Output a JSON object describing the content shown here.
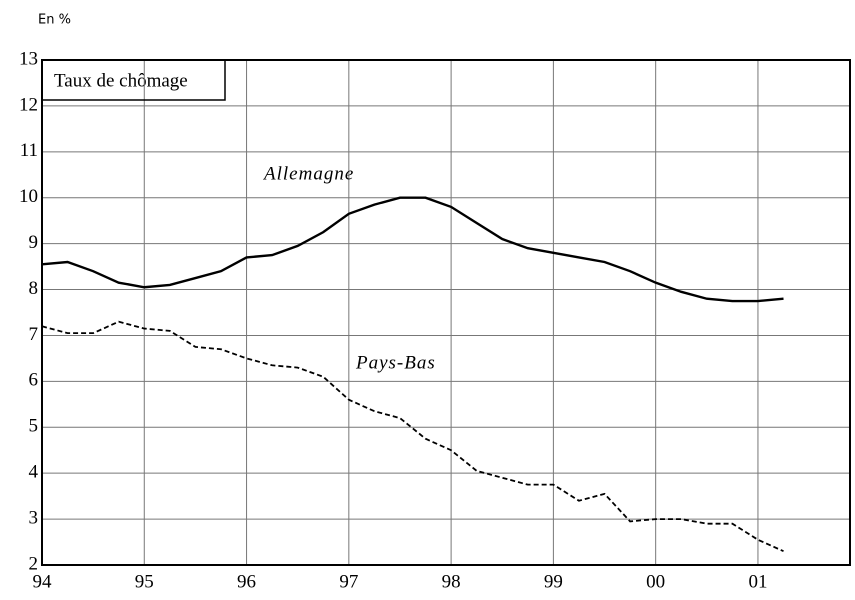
{
  "chart_data": {
    "type": "line",
    "unit_label": "En %",
    "ylabel": "Taux de chômage",
    "x": [
      94,
      94.25,
      94.5,
      94.75,
      95,
      95.25,
      95.5,
      95.75,
      96,
      96.25,
      96.5,
      96.75,
      97,
      97.25,
      97.5,
      97.75,
      98,
      98.25,
      98.5,
      98.75,
      99,
      99.25,
      99.5,
      99.75,
      100,
      100.25,
      100.5,
      100.75,
      101,
      101.25
    ],
    "series": [
      {
        "name": "Allemagne",
        "color": "#000000",
        "dash": "solid",
        "values": [
          8.55,
          8.6,
          8.4,
          8.15,
          8.05,
          8.1,
          8.25,
          8.4,
          8.7,
          8.75,
          8.95,
          9.25,
          9.65,
          9.85,
          10.0,
          10.0,
          9.8,
          9.45,
          9.1,
          8.9,
          8.8,
          8.7,
          8.6,
          8.4,
          8.15,
          7.95,
          7.8,
          7.75,
          7.75,
          7.8
        ]
      },
      {
        "name": "Pays-Bas",
        "color": "#000000",
        "dash": "dashed",
        "values": [
          7.2,
          7.05,
          7.05,
          7.3,
          7.15,
          7.1,
          6.75,
          6.7,
          6.5,
          6.35,
          6.3,
          6.1,
          5.6,
          5.35,
          5.2,
          4.75,
          4.5,
          4.05,
          3.9,
          3.75,
          3.75,
          3.4,
          3.55,
          2.95,
          3.0,
          3.0,
          2.9,
          2.9,
          2.55,
          2.3
        ]
      }
    ],
    "xlim": [
      94,
      101.9
    ],
    "xticks": [
      94,
      95,
      96,
      97,
      98,
      99,
      {
        "value": 100,
        "label": "00"
      },
      {
        "value": 101,
        "label": "01"
      }
    ],
    "ylim": [
      2,
      13
    ],
    "yticks": [
      2,
      3,
      4,
      5,
      6,
      7,
      8,
      9,
      10,
      11,
      12,
      13
    ],
    "grid": true
  }
}
